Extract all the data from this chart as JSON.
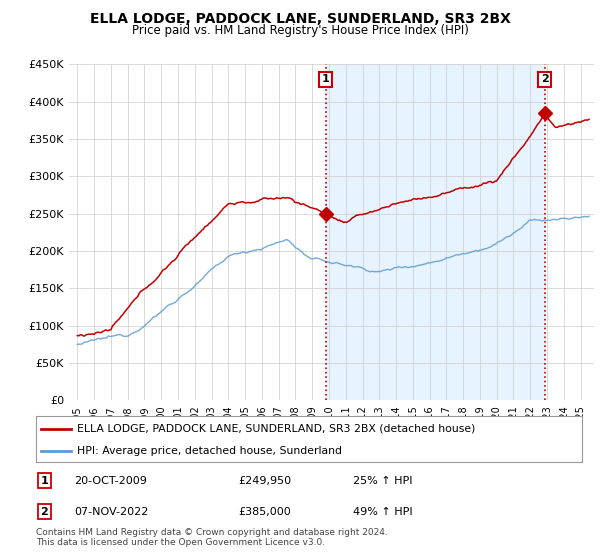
{
  "title": "ELLA LODGE, PADDOCK LANE, SUNDERLAND, SR3 2BX",
  "subtitle": "Price paid vs. HM Land Registry's House Price Index (HPI)",
  "yticks": [
    0,
    50000,
    100000,
    150000,
    200000,
    250000,
    300000,
    350000,
    400000,
    450000
  ],
  "ytick_labels": [
    "£0",
    "£50K",
    "£100K",
    "£150K",
    "£200K",
    "£250K",
    "£300K",
    "£350K",
    "£400K",
    "£450K"
  ],
  "sale1_year": 2009.8,
  "sale1_price": 249950,
  "sale1_label": "1",
  "sale2_year": 2022.85,
  "sale2_price": 385000,
  "sale2_label": "2",
  "hpi_color": "#5b9bd5",
  "price_color": "#c00000",
  "vline_color": "#c00000",
  "shade_color": "#ddeeff",
  "legend_label1": "ELLA LODGE, PADDOCK LANE, SUNDERLAND, SR3 2BX (detached house)",
  "legend_label2": "HPI: Average price, detached house, Sunderland",
  "table_row1": [
    "1",
    "20-OCT-2009",
    "£249,950",
    "25% ↑ HPI"
  ],
  "table_row2": [
    "2",
    "07-NOV-2022",
    "£385,000",
    "49% ↑ HPI"
  ],
  "footnote": "Contains HM Land Registry data © Crown copyright and database right 2024.\nThis data is licensed under the Open Government Licence v3.0.",
  "background_color": "#ffffff",
  "grid_color": "#cccccc",
  "xlim_left": 1994.5,
  "xlim_right": 2025.8
}
